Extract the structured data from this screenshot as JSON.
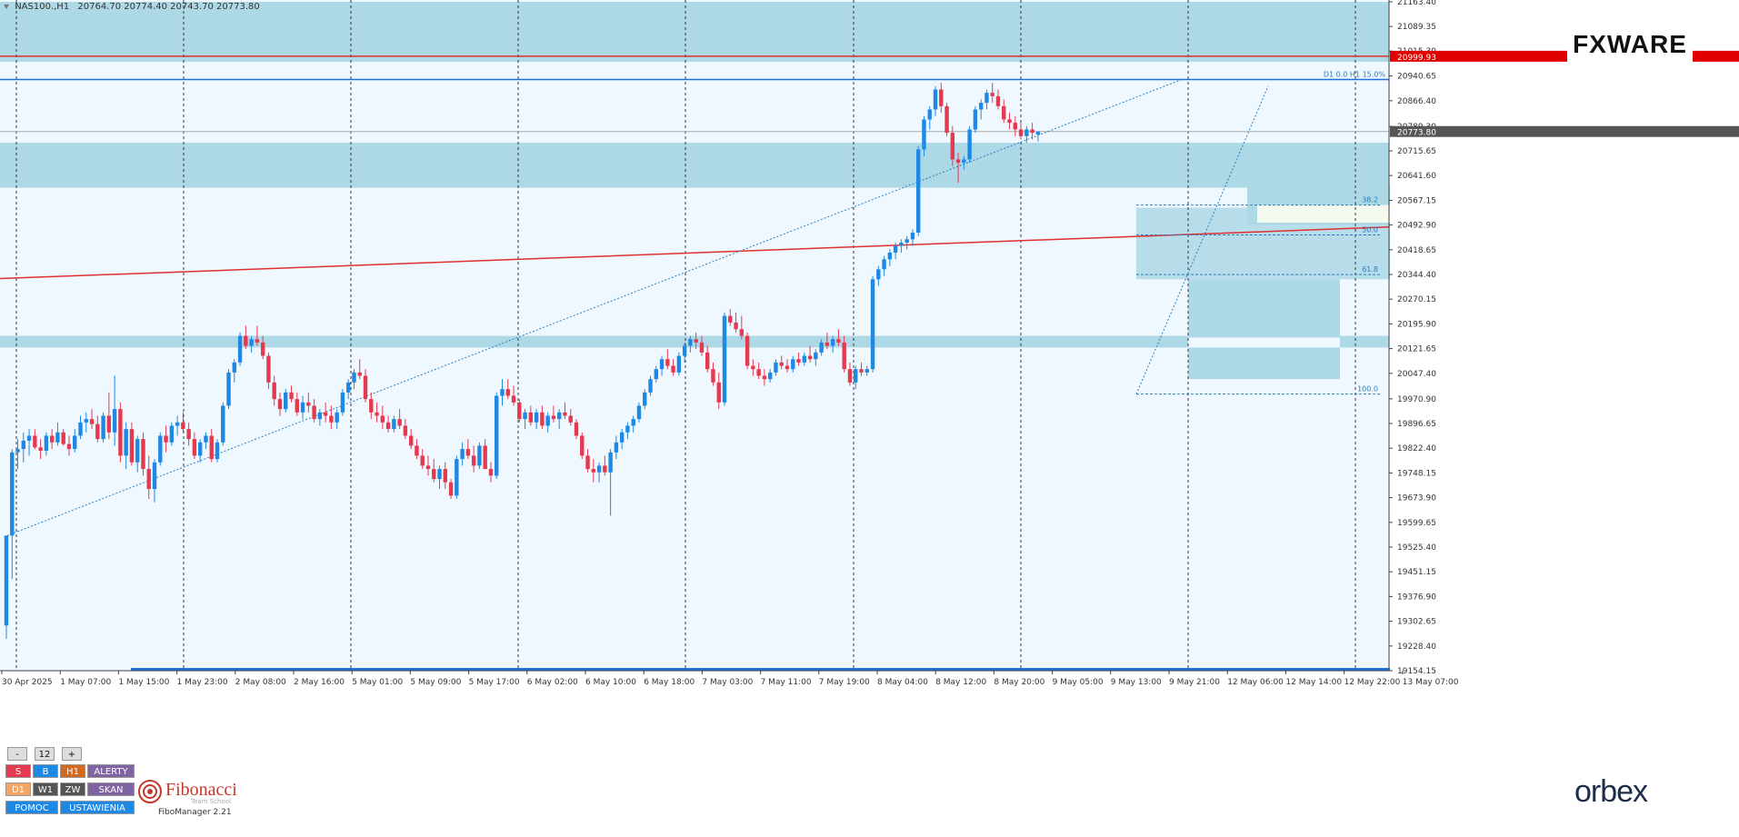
{
  "header": {
    "symbol": "NAS100.,H1",
    "ohlc": "20764.70 20774.40 20743.70 20773.80"
  },
  "brand_logo": "FXWARE",
  "broker_logo": "orbex",
  "colors": {
    "background": "#f0f8ff",
    "zone_fill": "#add8e6",
    "bull_candle": "#1e88e5",
    "bear_candle": "#e53950",
    "red_line": "#e03030",
    "blue_line": "#1e6fd9",
    "price_label_bg": "#555555",
    "resistance_label_bg": "#e00000"
  },
  "chart_data": {
    "type": "candlestick",
    "symbol": "NAS100.",
    "timeframe": "H1",
    "y_axis": {
      "min": 19154.15,
      "max": 21163.4,
      "ticks": [
        "21163.40",
        "21089.35",
        "21015.30",
        "20940.65",
        "20866.40",
        "20789.30",
        "20715.65",
        "20641.60",
        "20567.15",
        "20492.90",
        "20418.65",
        "20344.40",
        "20270.15",
        "20195.90",
        "20121.65",
        "20047.40",
        "19970.90",
        "19896.65",
        "19822.40",
        "19748.15",
        "19673.90",
        "19599.65",
        "19525.40",
        "19451.15",
        "19376.90",
        "19302.65",
        "19228.40",
        "19154.15"
      ]
    },
    "x_axis": {
      "labels": [
        "30 Apr 2025",
        "1 May 07:00",
        "1 May 15:00",
        "1 May 23:00",
        "2 May 08:00",
        "2 May 16:00",
        "5 May 01:00",
        "5 May 09:00",
        "5 May 17:00",
        "6 May 02:00",
        "6 May 10:00",
        "6 May 18:00",
        "7 May 03:00",
        "7 May 11:00",
        "7 May 19:00",
        "8 May 04:00",
        "8 May 12:00",
        "8 May 20:00",
        "9 May 05:00",
        "9 May 13:00",
        "9 May 21:00",
        "12 May 06:00",
        "12 May 14:00",
        "12 May 22:00",
        "13 May 07:00"
      ]
    },
    "current_price": "20773.80",
    "resistance_level": "20999.93",
    "high_line_label": "D1 0.0   H1 15.0%",
    "fibonacci_levels": [
      {
        "label": "38.2",
        "price": 20553
      },
      {
        "label": "50.0",
        "price": 20463
      },
      {
        "label": "61.8",
        "price": 20344
      },
      {
        "label": "100.0",
        "price": 19985
      }
    ],
    "candles": [
      [
        19290,
        19560,
        19250,
        19560
      ],
      [
        19560,
        19820,
        19430,
        19810
      ],
      [
        19810,
        19850,
        19760,
        19820
      ],
      [
        19820,
        19870,
        19780,
        19845
      ],
      [
        19845,
        19880,
        19800,
        19860
      ],
      [
        19860,
        19880,
        19820,
        19825
      ],
      [
        19825,
        19850,
        19790,
        19815
      ],
      [
        19815,
        19870,
        19800,
        19860
      ],
      [
        19860,
        19880,
        19820,
        19840
      ],
      [
        19840,
        19900,
        19830,
        19870
      ],
      [
        19870,
        19880,
        19830,
        19835
      ],
      [
        19835,
        19860,
        19800,
        19820
      ],
      [
        19820,
        19880,
        19810,
        19860
      ],
      [
        19860,
        19920,
        19850,
        19900
      ],
      [
        19900,
        19930,
        19870,
        19910
      ],
      [
        19910,
        19940,
        19880,
        19895
      ],
      [
        19895,
        19920,
        19840,
        19850
      ],
      [
        19850,
        19930,
        19840,
        19920
      ],
      [
        19920,
        19990,
        19850,
        19870
      ],
      [
        19870,
        20040,
        19830,
        19940
      ],
      [
        19940,
        19960,
        19780,
        19800
      ],
      [
        19800,
        19900,
        19760,
        19880
      ],
      [
        19880,
        19900,
        19770,
        19780
      ],
      [
        19780,
        19860,
        19750,
        19850
      ],
      [
        19850,
        19870,
        19740,
        19760
      ],
      [
        19760,
        19800,
        19670,
        19700
      ],
      [
        19700,
        19790,
        19660,
        19780
      ],
      [
        19780,
        19870,
        19770,
        19860
      ],
      [
        19860,
        19890,
        19810,
        19840
      ],
      [
        19840,
        19900,
        19830,
        19890
      ],
      [
        19890,
        19920,
        19860,
        19900
      ],
      [
        19900,
        19930,
        19870,
        19880
      ],
      [
        19880,
        19900,
        19830,
        19850
      ],
      [
        19850,
        19870,
        19790,
        19800
      ],
      [
        19800,
        19850,
        19780,
        19840
      ],
      [
        19840,
        19870,
        19820,
        19860
      ],
      [
        19860,
        19880,
        19780,
        19790
      ],
      [
        19790,
        19850,
        19780,
        19840
      ],
      [
        19840,
        19960,
        19830,
        19950
      ],
      [
        19950,
        20060,
        19940,
        20050
      ],
      [
        20050,
        20090,
        20020,
        20080
      ],
      [
        20080,
        20170,
        20070,
        20160
      ],
      [
        20160,
        20190,
        20120,
        20130
      ],
      [
        20130,
        20160,
        20110,
        20150
      ],
      [
        20150,
        20190,
        20130,
        20140
      ],
      [
        20140,
        20160,
        20090,
        20100
      ],
      [
        20100,
        20110,
        20000,
        20020
      ],
      [
        20020,
        20040,
        19950,
        19970
      ],
      [
        19970,
        19990,
        19920,
        19940
      ],
      [
        19940,
        20000,
        19930,
        19990
      ],
      [
        19990,
        20010,
        19960,
        19970
      ],
      [
        19970,
        19990,
        19920,
        19930
      ],
      [
        19930,
        19980,
        19910,
        19960
      ],
      [
        19960,
        19990,
        19930,
        19950
      ],
      [
        19950,
        19970,
        19900,
        19910
      ],
      [
        19910,
        19940,
        19890,
        19930
      ],
      [
        19930,
        19960,
        19900,
        19920
      ],
      [
        19920,
        19950,
        19880,
        19900
      ],
      [
        19900,
        19940,
        19880,
        19930
      ],
      [
        19930,
        20000,
        19920,
        19990
      ],
      [
        19990,
        20030,
        19970,
        20020
      ],
      [
        20020,
        20060,
        20000,
        20050
      ],
      [
        20050,
        20090,
        20030,
        20040
      ],
      [
        20040,
        20060,
        19960,
        19970
      ],
      [
        19970,
        19990,
        19910,
        19930
      ],
      [
        19930,
        19960,
        19900,
        19920
      ],
      [
        19920,
        19950,
        19880,
        19900
      ],
      [
        19900,
        19920,
        19870,
        19880
      ],
      [
        19880,
        19920,
        19870,
        19910
      ],
      [
        19910,
        19940,
        19880,
        19890
      ],
      [
        19890,
        19910,
        19850,
        19860
      ],
      [
        19860,
        19880,
        19820,
        19830
      ],
      [
        19830,
        19850,
        19790,
        19800
      ],
      [
        19800,
        19820,
        19760,
        19770
      ],
      [
        19770,
        19800,
        19740,
        19760
      ],
      [
        19760,
        19790,
        19720,
        19730
      ],
      [
        19730,
        19770,
        19700,
        19760
      ],
      [
        19760,
        19780,
        19700,
        19720
      ],
      [
        19720,
        19730,
        19670,
        19680
      ],
      [
        19680,
        19800,
        19670,
        19790
      ],
      [
        19790,
        19840,
        19770,
        19820
      ],
      [
        19820,
        19850,
        19790,
        19800
      ],
      [
        19800,
        19830,
        19750,
        19770
      ],
      [
        19770,
        19840,
        19760,
        19830
      ],
      [
        19830,
        19850,
        19760,
        19760
      ],
      [
        19760,
        19780,
        19720,
        19740
      ],
      [
        19740,
        19990,
        19730,
        19980
      ],
      [
        19980,
        20030,
        19950,
        20000
      ],
      [
        20000,
        20030,
        19970,
        19980
      ],
      [
        19980,
        20010,
        19950,
        19960
      ],
      [
        19960,
        19970,
        19900,
        19910
      ],
      [
        19910,
        19940,
        19880,
        19930
      ],
      [
        19930,
        19950,
        19890,
        19900
      ],
      [
        19900,
        19940,
        19880,
        19930
      ],
      [
        19930,
        19950,
        19880,
        19890
      ],
      [
        19890,
        19930,
        19870,
        19920
      ],
      [
        19920,
        19950,
        19900,
        19910
      ],
      [
        19910,
        19940,
        19880,
        19930
      ],
      [
        19930,
        19960,
        19910,
        19920
      ],
      [
        19920,
        19940,
        19890,
        19900
      ],
      [
        19900,
        19910,
        19850,
        19860
      ],
      [
        19860,
        19870,
        19790,
        19800
      ],
      [
        19800,
        19820,
        19750,
        19760
      ],
      [
        19760,
        19790,
        19720,
        19750
      ],
      [
        19750,
        19780,
        19720,
        19770
      ],
      [
        19770,
        19800,
        19740,
        19750
      ],
      [
        19750,
        19820,
        19620,
        19810
      ],
      [
        19810,
        19860,
        19790,
        19840
      ],
      [
        19840,
        19880,
        19820,
        19870
      ],
      [
        19870,
        19900,
        19850,
        19890
      ],
      [
        19890,
        19920,
        19870,
        19910
      ],
      [
        19910,
        19960,
        19900,
        19950
      ],
      [
        19950,
        20000,
        19940,
        19990
      ],
      [
        19990,
        20040,
        19980,
        20030
      ],
      [
        20030,
        20070,
        20020,
        20060
      ],
      [
        20060,
        20100,
        20040,
        20090
      ],
      [
        20090,
        20120,
        20060,
        20070
      ],
      [
        20070,
        20090,
        20040,
        20050
      ],
      [
        20050,
        20110,
        20040,
        20100
      ],
      [
        20100,
        20140,
        20080,
        20130
      ],
      [
        20130,
        20160,
        20110,
        20150
      ],
      [
        20150,
        20170,
        20120,
        20140
      ],
      [
        20140,
        20160,
        20100,
        20110
      ],
      [
        20110,
        20130,
        20050,
        20060
      ],
      [
        20060,
        20080,
        20010,
        20020
      ],
      [
        20020,
        20050,
        19940,
        19960
      ],
      [
        19960,
        20230,
        19950,
        20220
      ],
      [
        20220,
        20240,
        20190,
        20200
      ],
      [
        20200,
        20230,
        20170,
        20180
      ],
      [
        20180,
        20220,
        20150,
        20160
      ],
      [
        20160,
        20170,
        20060,
        20070
      ],
      [
        20070,
        20090,
        20040,
        20060
      ],
      [
        20060,
        20080,
        20030,
        20040
      ],
      [
        20040,
        20060,
        20010,
        20030
      ],
      [
        20030,
        20060,
        20020,
        20050
      ],
      [
        20050,
        20090,
        20040,
        20080
      ],
      [
        20080,
        20100,
        20060,
        20070
      ],
      [
        20070,
        20090,
        20050,
        20060
      ],
      [
        20060,
        20100,
        20050,
        20090
      ],
      [
        20090,
        20110,
        20070,
        20080
      ],
      [
        20080,
        20110,
        20070,
        20100
      ],
      [
        20100,
        20130,
        20080,
        20090
      ],
      [
        20090,
        20120,
        20070,
        20110
      ],
      [
        20110,
        20150,
        20100,
        20140
      ],
      [
        20140,
        20170,
        20120,
        20130
      ],
      [
        20130,
        20160,
        20110,
        20150
      ],
      [
        20150,
        20180,
        20130,
        20140
      ],
      [
        20140,
        20160,
        20050,
        20060
      ],
      [
        20060,
        20080,
        20010,
        20020
      ],
      [
        20020,
        20070,
        20000,
        20060
      ],
      [
        20060,
        20080,
        20040,
        20050
      ],
      [
        20050,
        20070,
        20040,
        20060
      ],
      [
        20060,
        20340,
        20050,
        20330
      ],
      [
        20330,
        20370,
        20310,
        20360
      ],
      [
        20360,
        20400,
        20340,
        20390
      ],
      [
        20390,
        20420,
        20370,
        20410
      ],
      [
        20410,
        20440,
        20390,
        20430
      ],
      [
        20430,
        20450,
        20410,
        20440
      ],
      [
        20440,
        20460,
        20420,
        20450
      ],
      [
        20450,
        20480,
        20430,
        20470
      ],
      [
        20470,
        20730,
        20460,
        20720
      ],
      [
        20720,
        20820,
        20700,
        20810
      ],
      [
        20810,
        20850,
        20780,
        20840
      ],
      [
        20840,
        20910,
        20820,
        20900
      ],
      [
        20900,
        20920,
        20830,
        20850
      ],
      [
        20850,
        20860,
        20760,
        20770
      ],
      [
        20770,
        20790,
        20670,
        20690
      ],
      [
        20690,
        20710,
        20620,
        20680
      ],
      [
        20680,
        20700,
        20660,
        20690
      ],
      [
        20690,
        20790,
        20680,
        20780
      ],
      [
        20780,
        20850,
        20770,
        20840
      ],
      [
        20840,
        20870,
        20810,
        20860
      ],
      [
        20860,
        20900,
        20840,
        20890
      ],
      [
        20890,
        20920,
        20860,
        20880
      ],
      [
        20880,
        20900,
        20840,
        20850
      ],
      [
        20850,
        20870,
        20800,
        20810
      ],
      [
        20810,
        20830,
        20780,
        20800
      ],
      [
        20800,
        20820,
        20760,
        20780
      ],
      [
        20780,
        20800,
        20750,
        20760
      ],
      [
        20760,
        20790,
        20740,
        20780
      ],
      [
        20780,
        20800,
        20750,
        20770
      ],
      [
        20764.7,
        20774.4,
        20743.7,
        20773.8
      ]
    ]
  },
  "panel": {
    "minus": "-",
    "period": "12",
    "plus": "+",
    "s": "S",
    "b": "B",
    "h1": "H1",
    "alerty": "ALERTY",
    "d1": "D1",
    "w1": "W1",
    "zw": "ZW",
    "skan": "SKAN",
    "pomoc": "POMOC",
    "ustawienia": "USTAWIENIA"
  },
  "fibonacci_widget": {
    "title": "Fibonacci",
    "subtitle": "Team School",
    "version": "FiboManager 2.21"
  }
}
